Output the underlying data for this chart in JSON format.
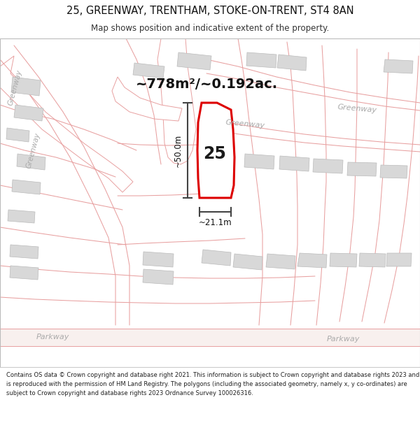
{
  "title_line1": "25, GREENWAY, TRENTHAM, STOKE-ON-TRENT, ST4 8AN",
  "title_line2": "Map shows position and indicative extent of the property.",
  "area_text": "~778m²/~0.192ac.",
  "plot_number": "25",
  "dim_vertical": "~50.0m",
  "dim_horizontal": "~21.1m",
  "footer_text": "Contains OS data © Crown copyright and database right 2021. This information is subject to Crown copyright and database rights 2023 and is reproduced with the permission of HM Land Registry. The polygons (including the associated geometry, namely x, y co-ordinates) are subject to Crown copyright and database rights 2023 Ordnance Survey 100026316.",
  "map_bg": "#ffffff",
  "plot_fill": "#ffffff",
  "plot_edge": "#dd0000",
  "building_fill": "#d8d8d8",
  "building_edge": "#bbbbbb",
  "road_line_color": "#e8a0a0",
  "road_fill_color": "#f0e8e4",
  "road_outer_color": "#d0b0b0",
  "dim_line_color": "#444444",
  "road_label_color": "#999999",
  "page_bg": "#ffffff",
  "footer_bg": "#ffffff",
  "sep_color": "#cccccc"
}
